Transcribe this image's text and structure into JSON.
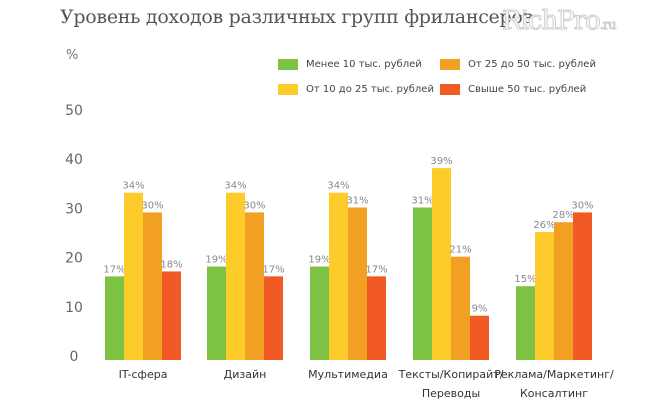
{
  "chart_data": {
    "type": "bar",
    "title": "Уровень доходов различных групп фрилансеров",
    "ylabel": "%",
    "ylim": [
      0,
      50
    ],
    "yticks": [
      "0",
      "10",
      "20",
      "30",
      "40",
      "50"
    ],
    "grid": false,
    "legend_position": "top-right",
    "categories": [
      [
        "IT-сфера"
      ],
      [
        "Дизайн"
      ],
      [
        "Мультимедиа"
      ],
      [
        "Тексты/Копирайт/",
        "Переводы"
      ],
      [
        "Реклама/Маркетинг/",
        "Консалтинг"
      ]
    ],
    "series": [
      {
        "name": "Менее 10 тыс. рублей",
        "color": "#7dc242",
        "values": [
          17,
          19,
          19,
          31,
          15
        ]
      },
      {
        "name": "От 10 до 25 тыс. рублей",
        "color": "#fdcb2a",
        "values": [
          34,
          34,
          34,
          39,
          26
        ]
      },
      {
        "name": "От 25 до 50 тыс. рублей",
        "color": "#f2a024",
        "values": [
          30,
          30,
          31,
          21,
          28
        ]
      },
      {
        "name": "Свыше 50 тыс. рублей",
        "color": "#f15a24",
        "values": [
          18,
          17,
          17,
          9,
          30
        ]
      }
    ]
  },
  "watermark": {
    "main": "RichPro",
    "suffix": ".ru"
  }
}
